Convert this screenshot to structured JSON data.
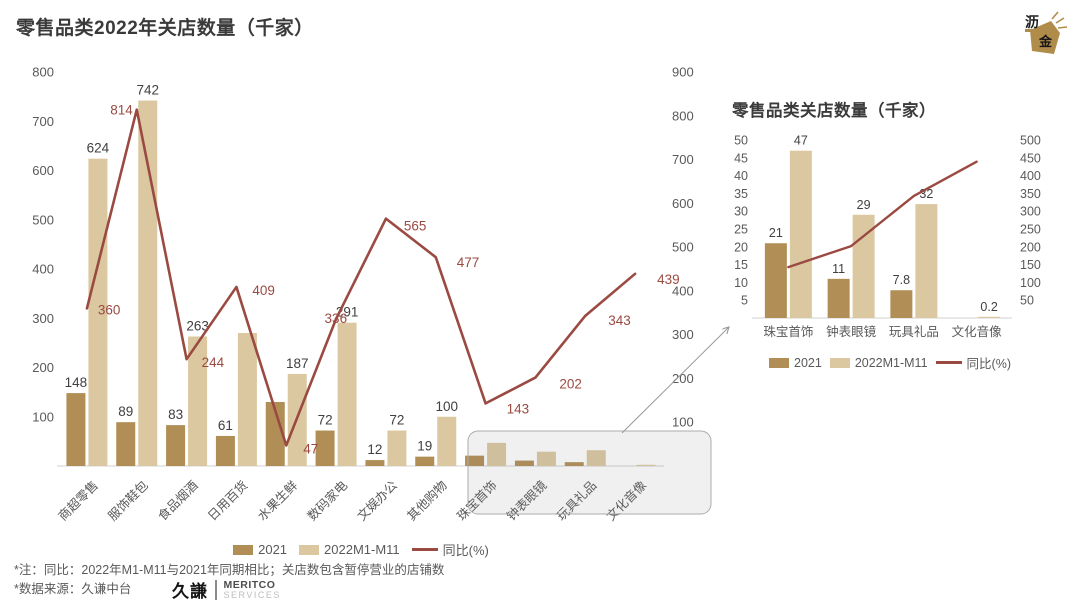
{
  "page": {
    "title": "零售品类2022年关店数量（千家）"
  },
  "colors": {
    "bar_2021": "#B18E55",
    "bar_2022": "#DBC8A0",
    "line": "#9B4A42",
    "value_label": "#404040",
    "line_label": "#9B4A42",
    "axis_label": "#595959",
    "axis_line": "#D9D9D9",
    "highlight_fill": "rgba(128,128,128,0.12)",
    "highlight_border": "#ABABAB",
    "callout": "#9A9A9A",
    "gold": "#B08C4A"
  },
  "chart_data": [
    {
      "id": "main",
      "type": "bar",
      "subtype": "grouped-bar-with-line",
      "title": "零售品类2022年关店数量（千家）",
      "categories": [
        "商超零售",
        "服饰鞋包",
        "食品烟酒",
        "日用百货",
        "水果生鲜",
        "数码家电",
        "文娱办公",
        "其他购物",
        "珠宝首饰",
        "钟表眼镜",
        "玩具礼品",
        "文化音像"
      ],
      "series": [
        {
          "name": "2021",
          "type": "bar",
          "axis": "left",
          "values": [
            148,
            89,
            83,
            61,
            130,
            72,
            12,
            19,
            21,
            11,
            7.8,
            0
          ],
          "data_labels": [
            "148",
            "89",
            "83",
            "61",
            "",
            "72",
            "12",
            "19",
            "",
            "",
            "",
            ""
          ]
        },
        {
          "name": "2022M1-M11",
          "type": "bar",
          "axis": "left",
          "values": [
            624,
            742,
            263,
            270,
            187,
            291,
            72,
            100,
            47,
            29,
            32,
            0.2
          ],
          "data_labels": [
            "624",
            "742",
            "263",
            "",
            "187",
            "291",
            "72",
            "100",
            "",
            "",
            "",
            ""
          ]
        },
        {
          "name": "同比(%)",
          "type": "line",
          "axis": "right",
          "values": [
            360,
            814,
            244,
            409,
            47,
            336,
            565,
            477,
            143,
            202,
            343,
            439
          ],
          "data_labels": [
            "360",
            "814",
            "244",
            "409",
            "47",
            "336",
            "565",
            "477",
            "143",
            "202",
            "343",
            "439"
          ]
        }
      ],
      "left_axis": {
        "min": 0,
        "max": 800,
        "ticks": [
          800,
          700,
          600,
          500,
          400,
          300,
          200,
          100
        ]
      },
      "right_axis": {
        "min": 0,
        "max": 900,
        "ticks": [
          900,
          800,
          700,
          600,
          500,
          400,
          300,
          200,
          100
        ]
      },
      "grid": "off",
      "legend_position": "bottom",
      "x_labels_rotated": true,
      "highlight_box_categories": [
        "珠宝首饰",
        "钟表眼镜",
        "玩具礼品",
        "文化音像"
      ]
    },
    {
      "id": "inset",
      "type": "bar",
      "subtype": "grouped-bar-with-line",
      "title": "零售品类关店数量（千家）",
      "categories": [
        "珠宝首饰",
        "钟表眼镜",
        "玩具礼品",
        "文化音像"
      ],
      "series": [
        {
          "name": "2021",
          "type": "bar",
          "axis": "left",
          "values": [
            21,
            11,
            7.8,
            0
          ],
          "data_labels": [
            "21",
            "11",
            "7.8",
            ""
          ]
        },
        {
          "name": "2022M1-M11",
          "type": "bar",
          "axis": "left",
          "values": [
            47,
            29,
            32,
            0.2
          ],
          "data_labels": [
            "47",
            "29",
            "32",
            "0.2"
          ]
        },
        {
          "name": "同比(%)",
          "type": "line",
          "axis": "right",
          "values": [
            143,
            202,
            343,
            439
          ],
          "data_labels": [
            "",
            "",
            "",
            ""
          ]
        }
      ],
      "left_axis": {
        "min": 0,
        "max": 50,
        "ticks": [
          50,
          45,
          40,
          35,
          30,
          25,
          20,
          15,
          10,
          5
        ]
      },
      "right_axis": {
        "min": 0,
        "max": 500,
        "ticks": [
          500,
          450,
          400,
          350,
          300,
          250,
          200,
          150,
          100,
          50
        ]
      },
      "grid": "off",
      "legend_position": "bottom",
      "x_labels_rotated": false
    }
  ],
  "legend": {
    "items": [
      {
        "label": "2021",
        "swatch": "bar",
        "color": "#B18E55"
      },
      {
        "label": "2022M1-M11",
        "swatch": "bar",
        "color": "#DBC8A0"
      },
      {
        "label": "同比(%)",
        "swatch": "line",
        "color": "#9B4A42"
      }
    ]
  },
  "footnotes": {
    "note1": "*注：同比：2022年M1-M11与2021年同期相比；关店数包含暂停营业的店铺数",
    "note2": "*数据来源：久谦中台"
  },
  "branding": {
    "corner_logo": {
      "top_char": "沥",
      "bottom_char": "金"
    },
    "footer_logo": {
      "cn": "久謙",
      "en_top": "MERITCO",
      "en_bottom": "SERVICES"
    }
  }
}
